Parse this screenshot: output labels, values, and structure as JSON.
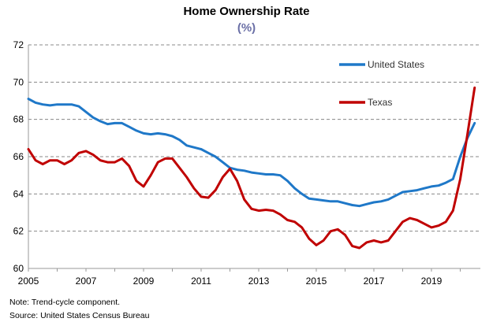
{
  "chart_data": {
    "type": "line",
    "title": "Home Ownership Rate",
    "subtitle": "(%)",
    "xlabel": "",
    "ylabel": "",
    "xlim": [
      2005,
      2020.7
    ],
    "ylim": [
      60,
      72
    ],
    "y_ticks": [
      60,
      62,
      64,
      66,
      68,
      70,
      72
    ],
    "x_ticks": [
      2005,
      2007,
      2009,
      2011,
      2013,
      2015,
      2017,
      2019
    ],
    "x_tick_labels": [
      "2005",
      "2007",
      "2009",
      "2011",
      "2013",
      "2015",
      "2017",
      "2019"
    ],
    "y_tick_labels": [
      "60",
      "62",
      "64",
      "66",
      "68",
      "70",
      "72"
    ],
    "grid": "horizontal dashed",
    "legend_placement": "right",
    "series": [
      {
        "name": "United States",
        "color": "#1f78c8",
        "x": [
          2005,
          2005.25,
          2005.5,
          2005.75,
          2006,
          2006.25,
          2006.5,
          2006.75,
          2007,
          2007.25,
          2007.5,
          2007.75,
          2008,
          2008.25,
          2008.5,
          2008.75,
          2009,
          2009.25,
          2009.5,
          2009.75,
          2010,
          2010.25,
          2010.5,
          2010.75,
          2011,
          2011.25,
          2011.5,
          2011.75,
          2012,
          2012.25,
          2012.5,
          2012.75,
          2013,
          2013.25,
          2013.5,
          2013.75,
          2014,
          2014.25,
          2014.5,
          2014.75,
          2015,
          2015.25,
          2015.5,
          2015.75,
          2016,
          2016.25,
          2016.5,
          2016.75,
          2017,
          2017.25,
          2017.5,
          2017.75,
          2018,
          2018.25,
          2018.5,
          2018.75,
          2019,
          2019.25,
          2019.5,
          2019.75,
          2020,
          2020.25,
          2020.5
        ],
        "values": [
          69.1,
          68.9,
          68.8,
          68.75,
          68.8,
          68.8,
          68.8,
          68.7,
          68.4,
          68.1,
          67.9,
          67.75,
          67.8,
          67.8,
          67.6,
          67.4,
          67.25,
          67.2,
          67.25,
          67.2,
          67.1,
          66.9,
          66.6,
          66.5,
          66.4,
          66.2,
          66.0,
          65.7,
          65.4,
          65.3,
          65.25,
          65.15,
          65.1,
          65.05,
          65.05,
          65.0,
          64.7,
          64.3,
          64.0,
          63.75,
          63.7,
          63.65,
          63.6,
          63.6,
          63.5,
          63.4,
          63.35,
          63.45,
          63.55,
          63.6,
          63.7,
          63.9,
          64.1,
          64.15,
          64.2,
          64.3,
          64.4,
          64.45,
          64.6,
          64.8,
          66.0,
          67.0,
          67.8
        ]
      },
      {
        "name": "Texas",
        "color": "#c00000",
        "x": [
          2005,
          2005.25,
          2005.5,
          2005.75,
          2006,
          2006.25,
          2006.5,
          2006.75,
          2007,
          2007.25,
          2007.5,
          2007.75,
          2008,
          2008.25,
          2008.5,
          2008.75,
          2009,
          2009.25,
          2009.5,
          2009.75,
          2010,
          2010.25,
          2010.5,
          2010.75,
          2011,
          2011.25,
          2011.5,
          2011.75,
          2012,
          2012.25,
          2012.5,
          2012.75,
          2013,
          2013.25,
          2013.5,
          2013.75,
          2014,
          2014.25,
          2014.5,
          2014.75,
          2015,
          2015.25,
          2015.5,
          2015.75,
          2016,
          2016.25,
          2016.5,
          2016.75,
          2017,
          2017.25,
          2017.5,
          2017.75,
          2018,
          2018.25,
          2018.5,
          2018.75,
          2019,
          2019.25,
          2019.5,
          2019.75,
          2020,
          2020.25,
          2020.5
        ],
        "values": [
          66.4,
          65.8,
          65.6,
          65.8,
          65.8,
          65.6,
          65.8,
          66.2,
          66.3,
          66.1,
          65.8,
          65.7,
          65.7,
          65.9,
          65.5,
          64.7,
          64.4,
          65.0,
          65.7,
          65.9,
          65.9,
          65.4,
          64.9,
          64.3,
          63.85,
          63.8,
          64.2,
          64.9,
          65.35,
          64.7,
          63.7,
          63.2,
          63.1,
          63.15,
          63.1,
          62.9,
          62.6,
          62.5,
          62.2,
          61.6,
          61.25,
          61.5,
          62.0,
          62.1,
          61.8,
          61.2,
          61.1,
          61.4,
          61.5,
          61.4,
          61.5,
          62.0,
          62.5,
          62.7,
          62.6,
          62.4,
          62.2,
          62.3,
          62.5,
          63.1,
          64.8,
          67.2,
          69.7
        ]
      }
    ],
    "footnote": "Note: Trend-cycle component.",
    "source": "Source: United States Census Bureau"
  }
}
